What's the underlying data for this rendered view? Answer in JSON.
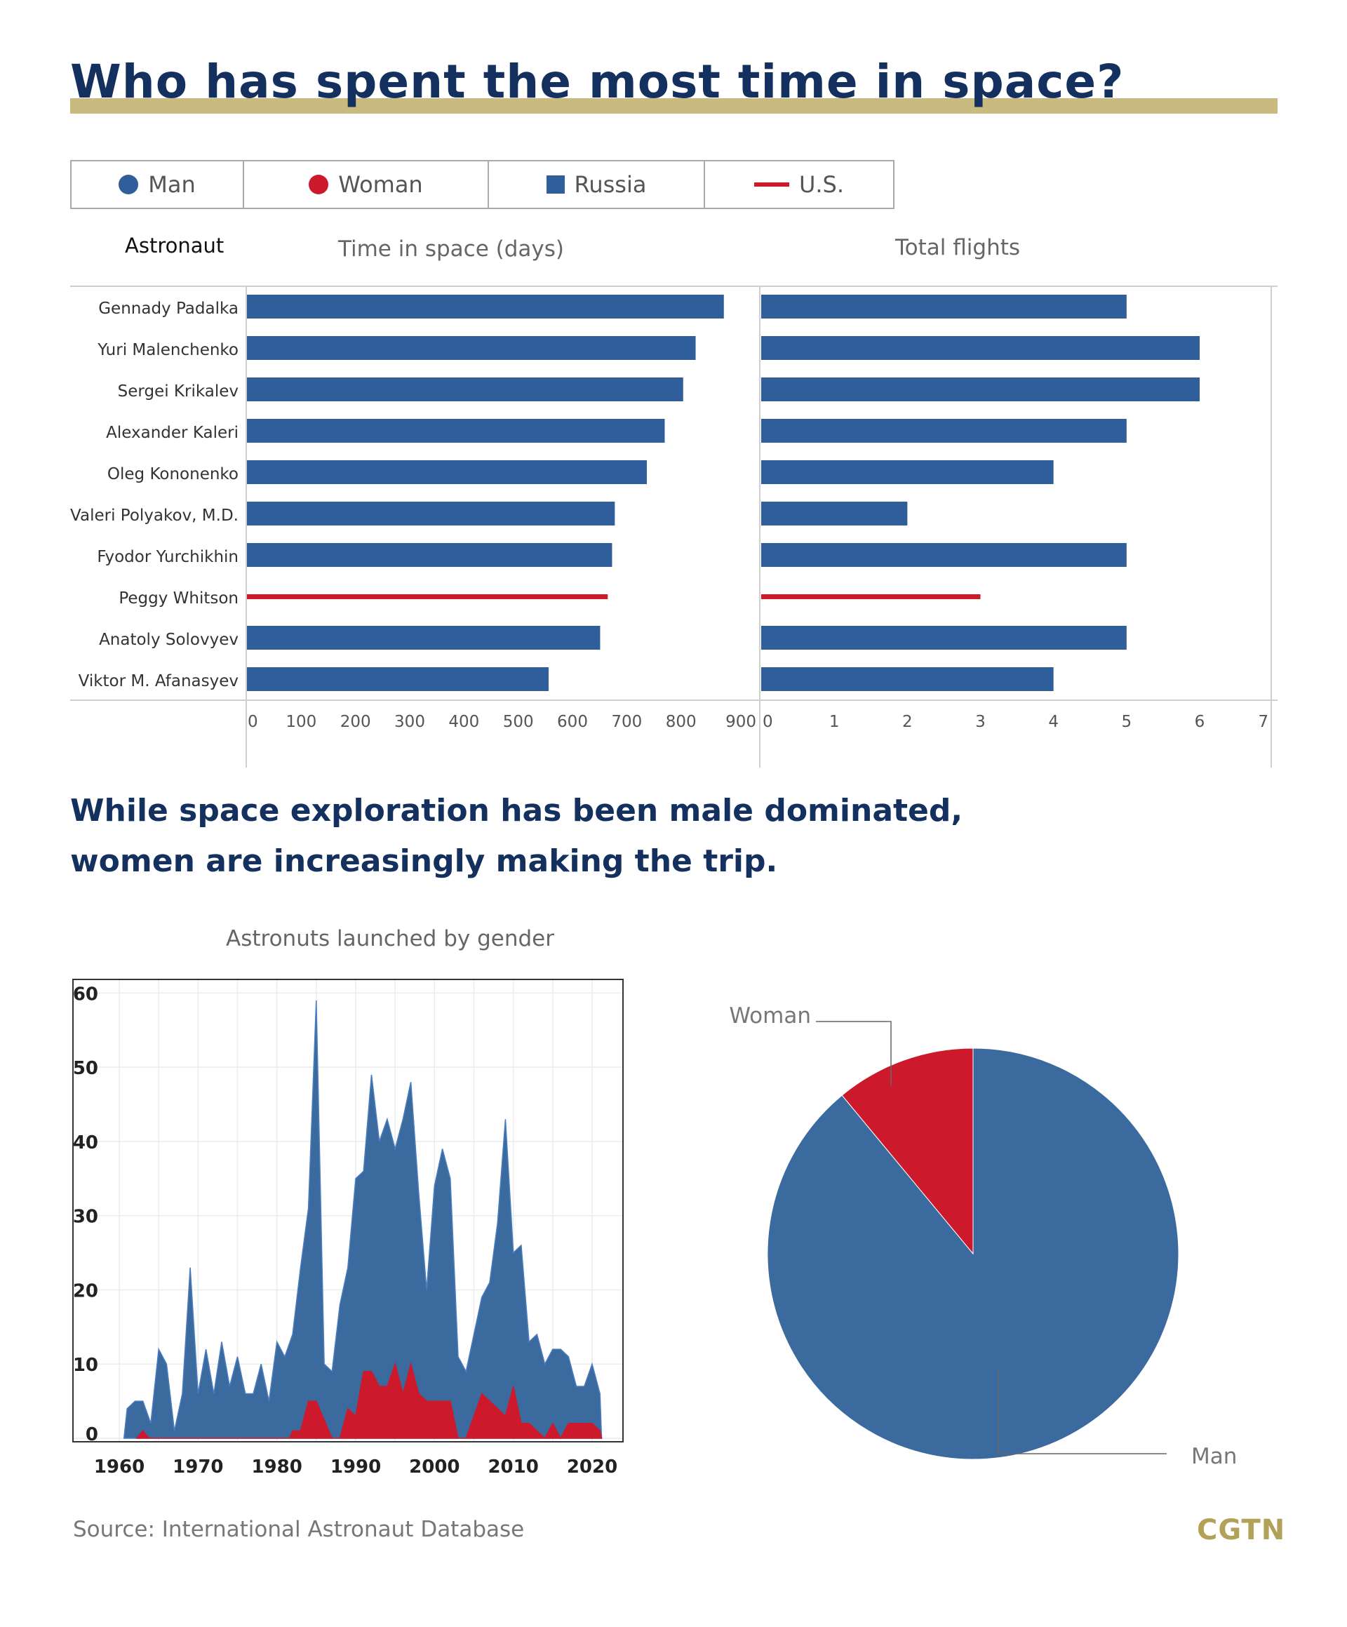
{
  "title": "Who has spent the most time in space?",
  "legend": [
    {
      "label": "Man",
      "shape": "dot",
      "color": "#2f5e9a"
    },
    {
      "label": "Woman",
      "shape": "dot",
      "color": "#cc1a2c"
    },
    {
      "label": "Russia",
      "shape": "square",
      "color": "#2f5e9a"
    },
    {
      "label": "U.S.",
      "shape": "line",
      "color": "#cc1a2c"
    }
  ],
  "column_headers": {
    "astronaut": "Astronaut",
    "time": "Time in space (days)",
    "flights": "Total flights"
  },
  "subtitle": {
    "line1": "While space exploration has been male dominated,",
    "line2": "women are increasingly making the trip."
  },
  "area_title": "Astronuts launched by gender",
  "source": "Source: International Astronaut Database",
  "logo": "CGTN",
  "colors": {
    "russia": "#2f5e9a",
    "us": "#cc1a2c",
    "man": "#3a6a9e",
    "woman": "#cc1a2c"
  },
  "chart_data": [
    {
      "type": "bar",
      "orientation": "horizontal",
      "categories": [
        "Gennady Padalka",
        "Yuri Malenchenko",
        "Sergei Krikalev",
        "Alexander Kaleri",
        "Oleg Kononenko",
        "Valeri Polyakov, M.D.",
        "Fyodor Yurchikhin",
        "Peggy Whitson",
        "Anatoly Solovyev",
        "Viktor M. Afanasyev"
      ],
      "country": [
        "Russia",
        "Russia",
        "Russia",
        "Russia",
        "Russia",
        "Russia",
        "Russia",
        "U.S.",
        "Russia",
        "Russia"
      ],
      "values": [
        879,
        827,
        804,
        770,
        737,
        678,
        673,
        665,
        651,
        556
      ],
      "xlabel": "Time in space (days)",
      "xticks": [
        0,
        100,
        200,
        300,
        400,
        500,
        600,
        700,
        800,
        900
      ],
      "xlim": [
        0,
        900
      ]
    },
    {
      "type": "bar",
      "orientation": "horizontal",
      "categories": [
        "Gennady Padalka",
        "Yuri Malenchenko",
        "Sergei Krikalev",
        "Alexander Kaleri",
        "Oleg Kononenko",
        "Valeri Polyakov, M.D.",
        "Fyodor Yurchikhin",
        "Peggy Whitson",
        "Anatoly Solovyev",
        "Viktor M. Afanasyev"
      ],
      "country": [
        "Russia",
        "Russia",
        "Russia",
        "Russia",
        "Russia",
        "Russia",
        "Russia",
        "U.S.",
        "Russia",
        "Russia"
      ],
      "values": [
        5,
        6,
        6,
        5,
        4,
        2,
        5,
        3,
        5,
        4
      ],
      "xlabel": "Total flights",
      "xticks": [
        0,
        1,
        2,
        3,
        4,
        5,
        6,
        7
      ],
      "xlim": [
        0,
        7
      ]
    },
    {
      "type": "area",
      "title": "Astronuts launched by gender",
      "series": [
        {
          "name": "Man",
          "color": "#3a6a9e",
          "points": [
            [
              1960.6,
              0
            ],
            [
              1961,
              4
            ],
            [
              1962,
              5
            ],
            [
              1963,
              5
            ],
            [
              1964,
              2
            ],
            [
              1965,
              12
            ],
            [
              1966,
              10
            ],
            [
              1967,
              1
            ],
            [
              1968,
              6
            ],
            [
              1969,
              23
            ],
            [
              1970,
              6
            ],
            [
              1971,
              12
            ],
            [
              1972,
              6
            ],
            [
              1973,
              13
            ],
            [
              1974,
              7
            ],
            [
              1975,
              11
            ],
            [
              1976,
              6
            ],
            [
              1977,
              6
            ],
            [
              1978,
              10
            ],
            [
              1979,
              5
            ],
            [
              1980,
              13
            ],
            [
              1981,
              11
            ],
            [
              1982,
              14
            ],
            [
              1983,
              23
            ],
            [
              1984,
              31
            ],
            [
              1985,
              59
            ],
            [
              1986,
              10
            ],
            [
              1987,
              9
            ],
            [
              1988,
              18
            ],
            [
              1989,
              23
            ],
            [
              1990,
              35
            ],
            [
              1991,
              36
            ],
            [
              1992,
              49
            ],
            [
              1993,
              40
            ],
            [
              1994,
              43
            ],
            [
              1995,
              39
            ],
            [
              1996,
              43
            ],
            [
              1997,
              48
            ],
            [
              1998,
              33
            ],
            [
              1999,
              20
            ],
            [
              2000,
              34
            ],
            [
              2001,
              39
            ],
            [
              2002,
              35
            ],
            [
              2003,
              11
            ],
            [
              2004,
              9
            ],
            [
              2005,
              14
            ],
            [
              2006,
              19
            ],
            [
              2007,
              21
            ],
            [
              2008,
              29
            ],
            [
              2009,
              43
            ],
            [
              2010,
              25
            ],
            [
              2011,
              26
            ],
            [
              2012,
              13
            ],
            [
              2013,
              14
            ],
            [
              2014,
              10
            ],
            [
              2015,
              12
            ],
            [
              2016,
              12
            ],
            [
              2017,
              11
            ],
            [
              2018,
              7
            ],
            [
              2019,
              7
            ],
            [
              2020,
              10
            ],
            [
              2021,
              6
            ],
            [
              2021.2,
              0
            ]
          ]
        },
        {
          "name": "Woman",
          "color": "#cc1a2c",
          "points": [
            [
              1962.2,
              0
            ],
            [
              1963,
              1
            ],
            [
              1963.8,
              0
            ],
            [
              1981.6,
              0
            ],
            [
              1982,
              1
            ],
            [
              1983,
              1
            ],
            [
              1984,
              5
            ],
            [
              1985,
              5
            ],
            [
              1987,
              0
            ],
            [
              1988,
              0
            ],
            [
              1989,
              4
            ],
            [
              1990,
              3
            ],
            [
              1991,
              9
            ],
            [
              1992,
              9
            ],
            [
              1993,
              7
            ],
            [
              1994,
              7
            ],
            [
              1995,
              10
            ],
            [
              1996,
              6
            ],
            [
              1997,
              10
            ],
            [
              1998,
              6
            ],
            [
              1999,
              5
            ],
            [
              2000,
              5
            ],
            [
              2001,
              5
            ],
            [
              2002,
              5
            ],
            [
              2003,
              0
            ],
            [
              2004,
              0
            ],
            [
              2005,
              3
            ],
            [
              2006,
              6
            ],
            [
              2007,
              5
            ],
            [
              2008,
              4
            ],
            [
              2009,
              3
            ],
            [
              2010,
              7
            ],
            [
              2011,
              2
            ],
            [
              2012,
              2
            ],
            [
              2013,
              1
            ],
            [
              2014,
              0
            ],
            [
              2015,
              2
            ],
            [
              2016,
              0
            ],
            [
              2017,
              2
            ],
            [
              2018,
              2
            ],
            [
              2019,
              2
            ],
            [
              2020,
              2
            ],
            [
              2021,
              1
            ],
            [
              2021.2,
              0
            ]
          ]
        }
      ],
      "xticks": [
        1960,
        1970,
        1980,
        1990,
        2000,
        2010,
        2020
      ],
      "yticks": [
        0,
        10,
        20,
        30,
        40,
        50,
        60
      ],
      "xlim": [
        1957,
        2024
      ],
      "ylim": [
        0,
        62
      ]
    },
    {
      "type": "pie",
      "slices": [
        {
          "label": "Man",
          "value": 89,
          "color": "#3a6a9e"
        },
        {
          "label": "Woman",
          "value": 11,
          "color": "#cc1a2c"
        }
      ]
    }
  ]
}
